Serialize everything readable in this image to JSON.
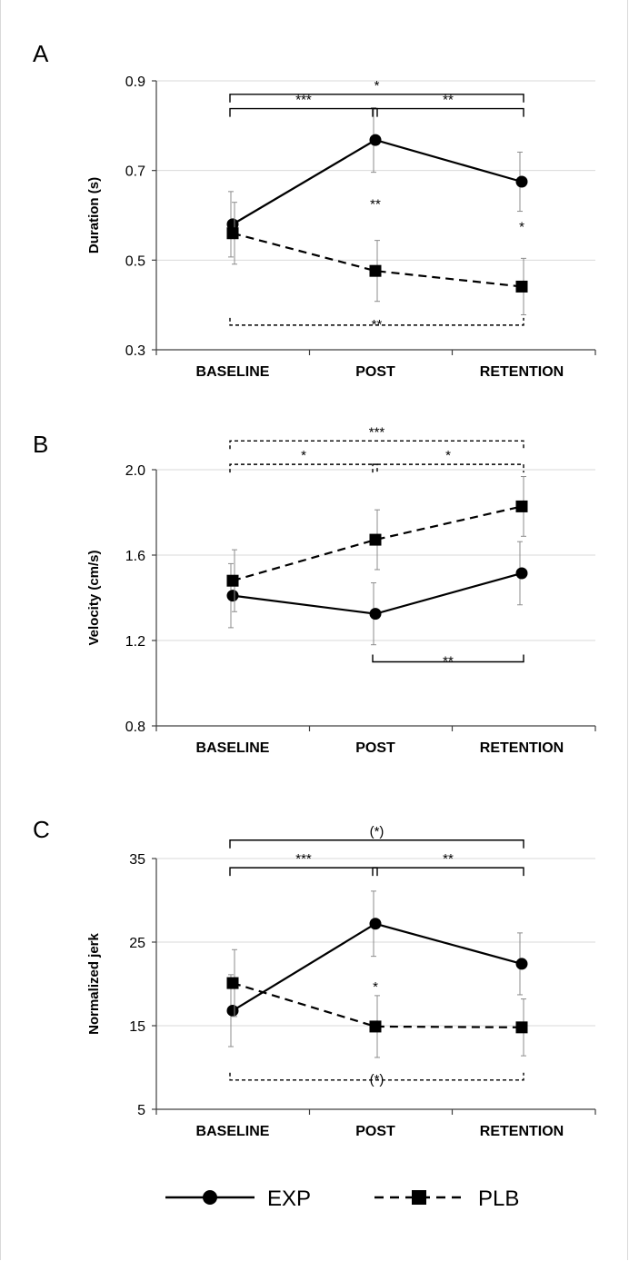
{
  "chart_data": [
    {
      "panel": "A",
      "type": "line",
      "ylabel": "Duration (s)",
      "categories": [
        "BASELINE",
        "POST",
        "RETENTION"
      ],
      "ylim": [
        0.3,
        0.9
      ],
      "yticks": [
        "0.3",
        "0.5",
        "0.7",
        "0.9"
      ],
      "ytick_values": [
        0.3,
        0.5,
        0.7,
        0.9
      ],
      "grid": true,
      "series": [
        {
          "name": "EXP",
          "values": [
            0.58,
            0.768,
            0.675
          ],
          "err": [
            0.073,
            0.072,
            0.066
          ],
          "marker": "circle",
          "dash": "solid"
        },
        {
          "name": "PLB",
          "values": [
            0.56,
            0.476,
            0.441
          ],
          "err": [
            0.069,
            0.068,
            0.063
          ],
          "marker": "square",
          "dash": "dashed"
        }
      ],
      "brackets": [
        {
          "from": 0,
          "to": 2,
          "value": 0.87,
          "label": "*",
          "dash": "solid",
          "dir": "up"
        },
        {
          "from": 0,
          "to": 1,
          "value": 0.838,
          "label": "***",
          "dash": "solid",
          "dir": "up"
        },
        {
          "from": 1,
          "to": 2,
          "value": 0.838,
          "label": "**",
          "dash": "solid",
          "dir": "up"
        },
        {
          "from": 0,
          "to": 2,
          "value": 0.355,
          "label": "**",
          "dash": "dashed",
          "dir": "down"
        }
      ],
      "annotations": [
        {
          "x": 1,
          "value": 0.625,
          "label": "**"
        },
        {
          "x": 2,
          "value": 0.575,
          "label": "*"
        }
      ]
    },
    {
      "panel": "B",
      "type": "line",
      "ylabel": "Velocity (cm/s)",
      "categories": [
        "BASELINE",
        "POST",
        "RETENTION"
      ],
      "ylim": [
        0.8,
        2.0
      ],
      "yticks": [
        "0.8",
        "1.2",
        "1.6",
        "2.0"
      ],
      "ytick_values": [
        0.8,
        1.2,
        1.6,
        2.0
      ],
      "grid": true,
      "series": [
        {
          "name": "EXP",
          "values": [
            1.41,
            1.325,
            1.515
          ],
          "err": [
            0.15,
            0.145,
            0.148
          ],
          "marker": "circle",
          "dash": "solid"
        },
        {
          "name": "PLB",
          "values": [
            1.48,
            1.672,
            1.828
          ],
          "err": [
            0.145,
            0.14,
            0.14
          ],
          "marker": "square",
          "dash": "dashed"
        }
      ],
      "brackets": [
        {
          "from": 0,
          "to": 2,
          "value": 2.135,
          "label": "***",
          "dash": "dashed",
          "dir": "up"
        },
        {
          "from": 0,
          "to": 1,
          "value": 2.025,
          "label": "*",
          "dash": "dashed",
          "dir": "up"
        },
        {
          "from": 1,
          "to": 2,
          "value": 2.025,
          "label": "*",
          "dash": "dashed",
          "dir": "up"
        },
        {
          "from": 1,
          "to": 2,
          "value": 1.1,
          "label": "**",
          "dash": "solid",
          "dir": "down"
        }
      ],
      "annotations": []
    },
    {
      "panel": "C",
      "type": "line",
      "ylabel": "Normalized jerk",
      "categories": [
        "BASELINE",
        "POST",
        "RETENTION"
      ],
      "ylim": [
        5,
        35
      ],
      "yticks": [
        "5",
        "15",
        "25",
        "35"
      ],
      "ytick_values": [
        5,
        15,
        25,
        35
      ],
      "grid": true,
      "series": [
        {
          "name": "EXP",
          "values": [
            16.8,
            27.2,
            22.4
          ],
          "err": [
            4.3,
            3.9,
            3.7
          ],
          "marker": "circle",
          "dash": "solid"
        },
        {
          "name": "PLB",
          "values": [
            20.1,
            14.9,
            14.8
          ],
          "err": [
            4.0,
            3.7,
            3.4
          ],
          "marker": "square",
          "dash": "dashed"
        }
      ],
      "brackets": [
        {
          "from": 0,
          "to": 2,
          "value": 37.2,
          "label": "(*)",
          "dash": "solid",
          "dir": "up"
        },
        {
          "from": 0,
          "to": 1,
          "value": 33.9,
          "label": "***",
          "dash": "solid",
          "dir": "up"
        },
        {
          "from": 1,
          "to": 2,
          "value": 33.9,
          "label": "**",
          "dash": "solid",
          "dir": "up"
        },
        {
          "from": 0,
          "to": 2,
          "value": 8.5,
          "label": "(*)",
          "dash": "dashed",
          "dir": "down"
        }
      ],
      "annotations": [
        {
          "x": 1,
          "value": 19.7,
          "label": "*"
        }
      ]
    }
  ],
  "legend": {
    "placement": "bottom-center",
    "items": [
      {
        "label": "EXP",
        "marker": "circle",
        "dash": "solid"
      },
      {
        "label": "PLB",
        "marker": "square",
        "dash": "dashed"
      }
    ]
  }
}
